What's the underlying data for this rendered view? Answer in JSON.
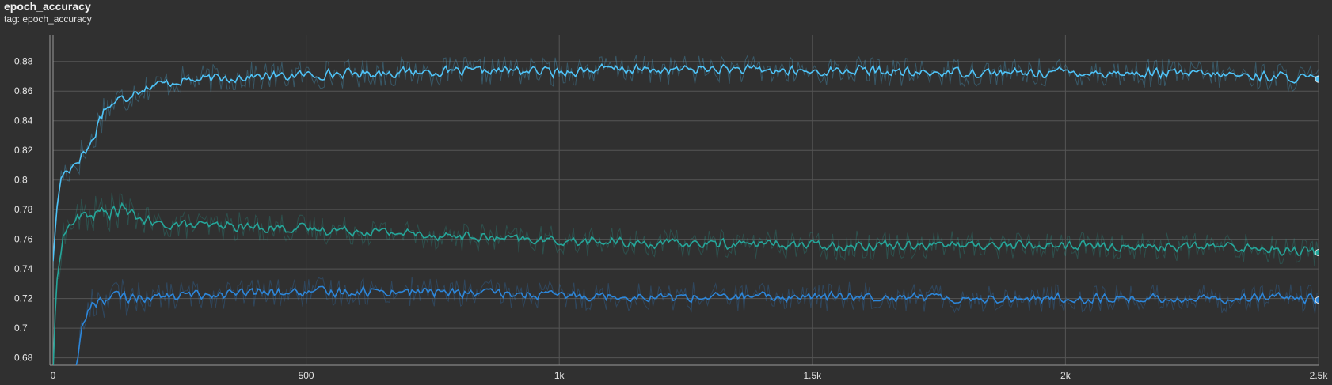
{
  "header": {
    "title": "epoch_accuracy",
    "tag": "tag: epoch_accuracy"
  },
  "chart_data": {
    "type": "line",
    "title": "epoch_accuracy",
    "subtitle": "tag: epoch_accuracy",
    "xlabel": "",
    "ylabel": "",
    "xlim": [
      0,
      2500
    ],
    "ylim": [
      0.675,
      0.898
    ],
    "x_ticks": [
      0,
      500,
      1000,
      1500,
      2000,
      2500
    ],
    "x_tick_labels": [
      "0",
      "500",
      "1k",
      "1.5k",
      "2k",
      "2.5k"
    ],
    "y_ticks": [
      0.68,
      0.7,
      0.72,
      0.74,
      0.76,
      0.78,
      0.8,
      0.82,
      0.84,
      0.86,
      0.88
    ],
    "y_tick_labels": [
      "0.68",
      "0.7",
      "0.72",
      "0.74",
      "0.76",
      "0.78",
      "0.8",
      "0.82",
      "0.84",
      "0.86",
      "0.88"
    ],
    "grid": true,
    "smoothing_visible": true,
    "series": [
      {
        "color": "#4fc3f7",
        "x": [
          0,
          5,
          10,
          15,
          20,
          30,
          40,
          50,
          60,
          70,
          80,
          90,
          100,
          120,
          140,
          160,
          180,
          200,
          250,
          300,
          350,
          400,
          450,
          500,
          600,
          700,
          800,
          900,
          1000,
          1100,
          1200,
          1300,
          1400,
          1500,
          1600,
          1700,
          1800,
          1900,
          2000,
          2100,
          2200,
          2300,
          2400,
          2500
        ],
        "y": [
          0.747,
          0.768,
          0.79,
          0.8,
          0.804,
          0.808,
          0.81,
          0.815,
          0.818,
          0.822,
          0.828,
          0.84,
          0.848,
          0.852,
          0.855,
          0.86,
          0.862,
          0.864,
          0.867,
          0.868,
          0.869,
          0.87,
          0.87,
          0.871,
          0.872,
          0.873,
          0.873,
          0.874,
          0.873,
          0.875,
          0.874,
          0.875,
          0.874,
          0.873,
          0.874,
          0.872,
          0.873,
          0.872,
          0.873,
          0.872,
          0.872,
          0.871,
          0.87,
          0.868
        ]
      },
      {
        "color": "#26a69a",
        "x": [
          0,
          5,
          10,
          15,
          20,
          30,
          40,
          50,
          60,
          80,
          100,
          120,
          140,
          160,
          180,
          200,
          250,
          300,
          350,
          400,
          450,
          500,
          600,
          700,
          800,
          900,
          1000,
          1100,
          1200,
          1300,
          1400,
          1500,
          1600,
          1700,
          1800,
          1900,
          2000,
          2100,
          2200,
          2300,
          2400,
          2500
        ],
        "y": [
          0.672,
          0.715,
          0.74,
          0.755,
          0.762,
          0.768,
          0.772,
          0.774,
          0.776,
          0.777,
          0.778,
          0.779,
          0.78,
          0.776,
          0.773,
          0.77,
          0.77,
          0.769,
          0.769,
          0.768,
          0.768,
          0.767,
          0.766,
          0.764,
          0.762,
          0.76,
          0.759,
          0.758,
          0.757,
          0.757,
          0.757,
          0.756,
          0.756,
          0.757,
          0.756,
          0.756,
          0.756,
          0.755,
          0.755,
          0.755,
          0.754,
          0.751
        ]
      },
      {
        "color": "#2d86d9",
        "x": [
          45,
          50,
          55,
          60,
          70,
          80,
          90,
          100,
          120,
          150,
          200,
          250,
          300,
          350,
          400,
          450,
          500,
          600,
          700,
          800,
          900,
          1000,
          1100,
          1200,
          1300,
          1400,
          1500,
          1600,
          1700,
          1800,
          1900,
          2000,
          2100,
          2200,
          2300,
          2400,
          2500
        ],
        "y": [
          0.675,
          0.685,
          0.695,
          0.703,
          0.712,
          0.717,
          0.719,
          0.72,
          0.721,
          0.721,
          0.721,
          0.722,
          0.723,
          0.723,
          0.724,
          0.724,
          0.724,
          0.725,
          0.725,
          0.724,
          0.723,
          0.722,
          0.722,
          0.721,
          0.721,
          0.721,
          0.721,
          0.722,
          0.721,
          0.72,
          0.72,
          0.72,
          0.72,
          0.72,
          0.72,
          0.721,
          0.719
        ]
      }
    ]
  }
}
